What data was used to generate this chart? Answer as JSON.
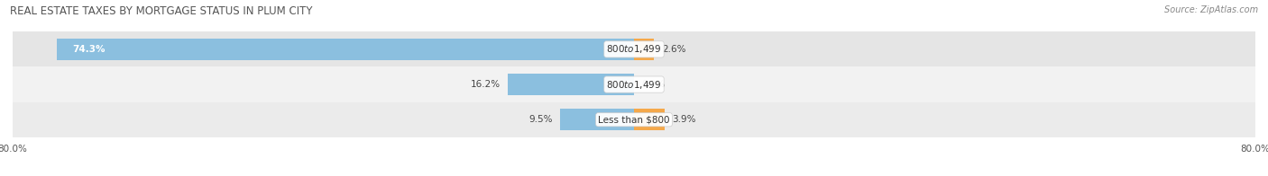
{
  "title": "REAL ESTATE TAXES BY MORTGAGE STATUS IN PLUM CITY",
  "source": "Source: ZipAtlas.com",
  "rows": [
    {
      "label": "Less than $800",
      "without_mortgage_pct": 9.5,
      "with_mortgage_pct": 3.9
    },
    {
      "label": "$800 to $1,499",
      "without_mortgage_pct": 16.2,
      "with_mortgage_pct": 0.0
    },
    {
      "label": "$800 to $1,499",
      "without_mortgage_pct": 74.3,
      "with_mortgage_pct": 2.6
    }
  ],
  "axis_min": -80.0,
  "axis_max": 80.0,
  "axis_left_label": "80.0%",
  "axis_right_label": "80.0%",
  "color_without_mortgage": "#8BBFDF",
  "color_with_mortgage": "#F5A84A",
  "row_bg_colors": [
    "#EBEBEB",
    "#F2F2F2",
    "#E5E5E5"
  ],
  "bar_height": 0.62,
  "title_fontsize": 8.5,
  "label_fontsize": 7.5,
  "pct_fontsize": 7.5,
  "tick_fontsize": 7.5,
  "legend_fontsize": 7.5,
  "source_fontsize": 7.0
}
